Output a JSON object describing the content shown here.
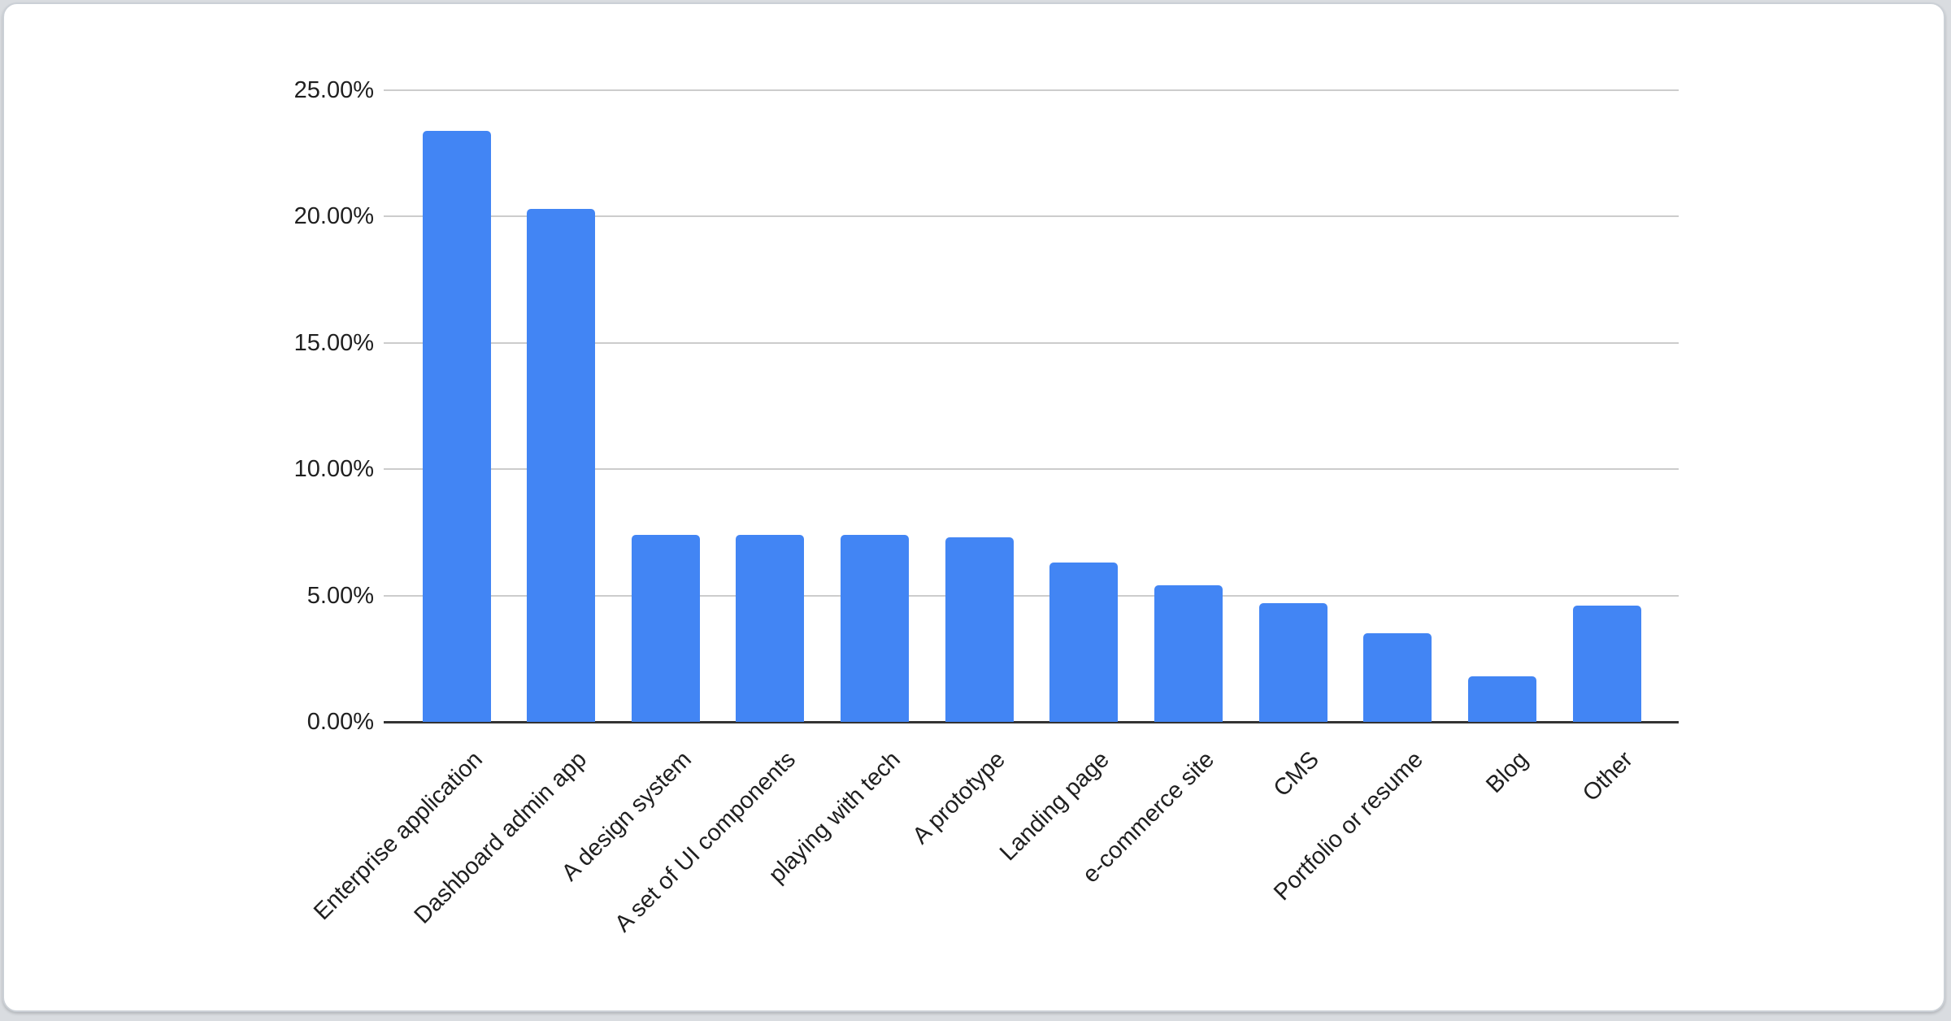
{
  "page": {
    "background_color": "#d9dce0"
  },
  "card": {
    "background_color": "#ffffff",
    "border_color": "#cbd0d6"
  },
  "chart_data": {
    "type": "bar",
    "title": "",
    "xlabel": "",
    "ylabel": "",
    "categories": [
      "Enterprise application",
      "Dashboard admin app",
      "A design system",
      "A set of UI components",
      "playing with tech",
      "A prototype",
      "Landing page",
      "e-commerce site",
      "CMS",
      "Portfolio or resume",
      "Blog",
      "Other"
    ],
    "values": [
      23.4,
      20.3,
      7.4,
      7.4,
      7.4,
      7.3,
      6.3,
      5.4,
      4.7,
      3.5,
      1.8,
      4.6
    ],
    "value_unit": "%",
    "ylim": [
      0,
      25
    ],
    "y_ticks": [
      0,
      5,
      10,
      15,
      20,
      25
    ],
    "y_tick_labels": [
      "0.00%",
      "5.00%",
      "10.00%",
      "15.00%",
      "20.00%",
      "25.00%"
    ],
    "grid": true,
    "legend": "none",
    "x_label_rotation_deg": -45,
    "bar_color": "#4285f4",
    "gridline_color": "#cccccc",
    "axis_line_color": "#333333",
    "text_color": "#1f1f1f"
  }
}
